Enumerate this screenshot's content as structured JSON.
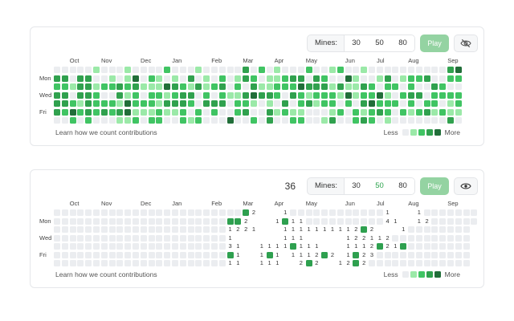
{
  "colors": {
    "levels": [
      "#ebedf0",
      "#9be9a8",
      "#40c463",
      "#30a14e",
      "#216e39"
    ],
    "hidden": "#ebedf0",
    "revealed": "#ffffff",
    "flag": "#2ea04f",
    "accent": "#2da44e",
    "play_bg": "#94d3a2"
  },
  "months": [
    {
      "label": "Oct",
      "col": 1
    },
    {
      "label": "Nov",
      "col": 5
    },
    {
      "label": "Dec",
      "col": 10
    },
    {
      "label": "Jan",
      "col": 14
    },
    {
      "label": "Feb",
      "col": 19
    },
    {
      "label": "Mar",
      "col": 23
    },
    {
      "label": "Apr",
      "col": 27
    },
    {
      "label": "May",
      "col": 31
    },
    {
      "label": "Jun",
      "col": 36
    },
    {
      "label": "Jul",
      "col": 40
    },
    {
      "label": "Aug",
      "col": 44
    },
    {
      "label": "Sep",
      "col": 49
    }
  ],
  "day_labels": [
    {
      "label": "Mon",
      "row": 1
    },
    {
      "label": "Wed",
      "row": 3
    },
    {
      "label": "Fri",
      "row": 5
    }
  ],
  "panel1": {
    "counter": "",
    "mines_label": "Mines:",
    "mine_options": [
      "30",
      "50",
      "80"
    ],
    "selected_option": "",
    "play_label": "Play",
    "visibility_icon": "eye-off-icon",
    "footer_link": "Learn how we count contributions",
    "legend_less": "Less",
    "legend_more": "More",
    "rows": [
      "0000010001000020001000003020100020012001000000000034",
      "3303300101402101030102013201123303200410013012230022",
      "2213312232311143213123020311222433313113202202003200",
      "3303320031202212330202113433203212221412241023302222",
      "3321322214222133320333022101030231220203422202022012",
      "3242323234111211202020023003121100012021232021231211",
      "0020200011202200212000400203002200130023201000000030"
    ]
  },
  "panel2": {
    "counter": "36",
    "mines_label": "Mines:",
    "mine_options": [
      "30",
      "50",
      "80"
    ],
    "selected_option": "50",
    "play_label": "Play",
    "visibility_icon": "eye-icon",
    "footer_link": "Learn how we count contributions",
    "legend_less": "Less",
    "legend_more": "More",
    "rows": [
      "........................F2   1............1   1.......",
      "......................FF2   1F11..........41  12......",
      "......................1221   1111111112F2   1........",
      "......................1      111     122112..........",
      "......................31  1111F111   1112F21F........",
      "......................F1  1F1 1112F2 1F23............",
      "......................11  111  2F2  12F2............."
    ]
  }
}
